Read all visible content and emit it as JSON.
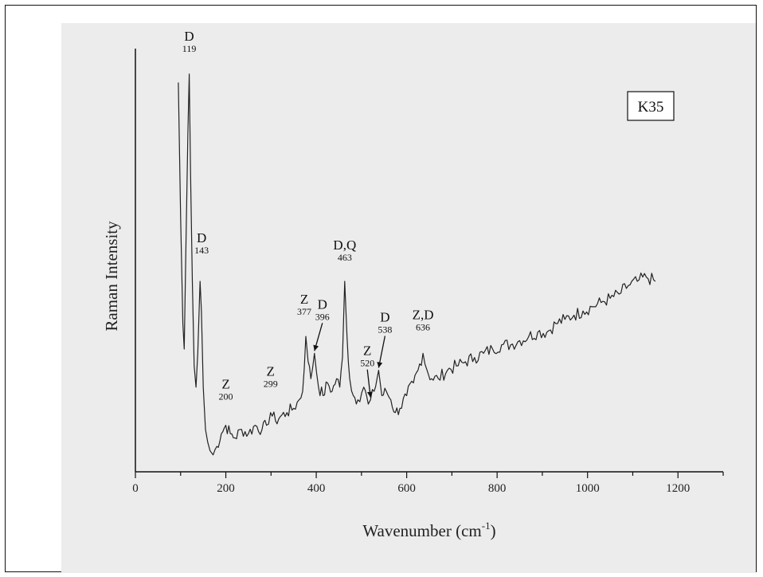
{
  "chart_data": {
    "type": "line",
    "xlabel": "Wavenumber (cm",
    "xlabel_sup": "-1",
    "xlabel_close": ")",
    "ylabel": "Raman Intensity",
    "sample_label": "K35",
    "xlim": [
      0,
      1300
    ],
    "ylim": [
      0,
      100
    ],
    "x_ticks": [
      0,
      200,
      400,
      600,
      800,
      1000,
      1200
    ],
    "grid": false,
    "series": [
      {
        "points": [
          [
            95,
            92
          ],
          [
            100,
            60
          ],
          [
            105,
            35
          ],
          [
            108,
            29
          ],
          [
            112,
            55
          ],
          [
            116,
            80
          ],
          [
            119,
            94
          ],
          [
            122,
            70
          ],
          [
            126,
            45
          ],
          [
            130,
            25
          ],
          [
            134,
            20
          ],
          [
            138,
            28
          ],
          [
            143,
            45
          ],
          [
            146,
            38
          ],
          [
            150,
            20
          ],
          [
            155,
            10
          ],
          [
            160,
            7
          ],
          [
            165,
            5
          ],
          [
            172,
            4
          ],
          [
            180,
            6
          ],
          [
            190,
            9
          ],
          [
            200,
            11
          ],
          [
            210,
            9
          ],
          [
            220,
            8
          ],
          [
            235,
            10
          ],
          [
            250,
            9
          ],
          [
            265,
            11
          ],
          [
            280,
            10
          ],
          [
            290,
            11
          ],
          [
            299,
            14
          ],
          [
            310,
            12
          ],
          [
            320,
            13
          ],
          [
            335,
            14
          ],
          [
            350,
            15
          ],
          [
            362,
            17
          ],
          [
            370,
            19
          ],
          [
            377,
            32
          ],
          [
            382,
            26
          ],
          [
            388,
            22
          ],
          [
            396,
            28
          ],
          [
            405,
            20
          ],
          [
            415,
            18
          ],
          [
            425,
            21
          ],
          [
            435,
            19
          ],
          [
            445,
            22
          ],
          [
            452,
            20
          ],
          [
            458,
            27
          ],
          [
            463,
            45
          ],
          [
            468,
            32
          ],
          [
            474,
            22
          ],
          [
            482,
            18
          ],
          [
            492,
            17
          ],
          [
            505,
            20
          ],
          [
            515,
            16
          ],
          [
            520,
            17
          ],
          [
            528,
            19
          ],
          [
            538,
            24
          ],
          [
            545,
            18
          ],
          [
            555,
            19
          ],
          [
            565,
            17
          ],
          [
            575,
            14
          ],
          [
            585,
            15
          ],
          [
            600,
            18
          ],
          [
            615,
            21
          ],
          [
            625,
            24
          ],
          [
            636,
            28
          ],
          [
            645,
            24
          ],
          [
            655,
            22
          ],
          [
            670,
            22
          ],
          [
            690,
            24
          ],
          [
            710,
            25
          ],
          [
            730,
            26
          ],
          [
            750,
            27
          ],
          [
            770,
            28
          ],
          [
            790,
            29
          ],
          [
            810,
            30
          ],
          [
            830,
            30
          ],
          [
            850,
            31
          ],
          [
            870,
            32
          ],
          [
            890,
            33
          ],
          [
            910,
            33
          ],
          [
            930,
            35
          ],
          [
            950,
            36
          ],
          [
            970,
            37
          ],
          [
            990,
            38
          ],
          [
            1010,
            39
          ],
          [
            1030,
            40
          ],
          [
            1050,
            41
          ],
          [
            1070,
            42
          ],
          [
            1090,
            44
          ],
          [
            1110,
            45
          ],
          [
            1130,
            46
          ],
          [
            1150,
            45
          ]
        ]
      }
    ],
    "annotations": [
      {
        "letter": "D",
        "number": "119",
        "x": 119
      },
      {
        "letter": "D",
        "number": "143",
        "x": 143
      },
      {
        "letter": "Z",
        "number": "200",
        "x": 200
      },
      {
        "letter": "Z",
        "number": "299",
        "x": 299
      },
      {
        "letter": "Z",
        "number": "377",
        "x": 377
      },
      {
        "letter": "D",
        "number": "396",
        "x": 396
      },
      {
        "letter": "D,Q",
        "number": "463",
        "x": 463
      },
      {
        "letter": "Z",
        "number": "520",
        "x": 520
      },
      {
        "letter": "D",
        "number": "538",
        "x": 538
      },
      {
        "letter": "Z,D",
        "number": "636",
        "x": 636
      }
    ]
  }
}
